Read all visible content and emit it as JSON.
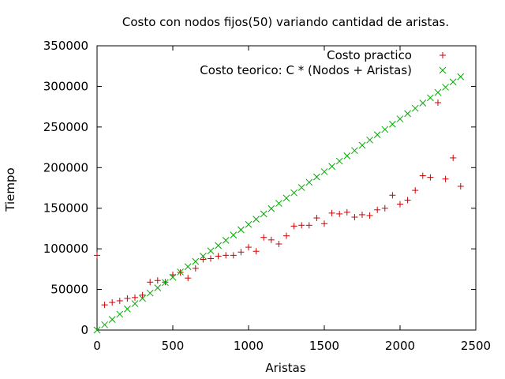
{
  "chart_data": {
    "type": "scatter",
    "title": "Costo con nodos fijos(50) variando cantidad de aristas.",
    "xlabel": "Aristas",
    "ylabel": "Tiempo",
    "xlim": [
      0,
      2500
    ],
    "ylim": [
      0,
      350000
    ],
    "x_ticks": [
      0,
      500,
      1000,
      1500,
      2000,
      2500
    ],
    "y_ticks": [
      0,
      50000,
      100000,
      150000,
      200000,
      250000,
      300000,
      350000
    ],
    "grid": false,
    "legend_position": "top-right",
    "series": [
      {
        "name": "Costo practico",
        "marker": "plus",
        "color": "#cc0000",
        "points": [
          [
            0,
            92000
          ],
          [
            50,
            31000
          ],
          [
            100,
            34000
          ],
          [
            150,
            36000
          ],
          [
            200,
            39000
          ],
          [
            250,
            40000
          ],
          [
            300,
            43000
          ],
          [
            350,
            59000
          ],
          [
            400,
            61000
          ],
          [
            450,
            59000
          ],
          [
            500,
            68000
          ],
          [
            550,
            71000
          ],
          [
            600,
            64000
          ],
          [
            650,
            76000
          ],
          [
            700,
            87000
          ],
          [
            750,
            88000
          ],
          [
            800,
            91000
          ],
          [
            850,
            92000
          ],
          [
            900,
            92000
          ],
          [
            950,
            96000
          ],
          [
            1000,
            102000
          ],
          [
            1050,
            97000
          ],
          [
            1100,
            114000
          ],
          [
            1150,
            111000
          ],
          [
            1200,
            106000
          ],
          [
            1250,
            116000
          ],
          [
            1300,
            128000
          ],
          [
            1350,
            129000
          ],
          [
            1400,
            129000
          ],
          [
            1450,
            138000
          ],
          [
            1500,
            131000
          ],
          [
            1550,
            144000
          ],
          [
            1600,
            143000
          ],
          [
            1650,
            145000
          ],
          [
            1700,
            139000
          ],
          [
            1750,
            142000
          ],
          [
            1800,
            141000
          ],
          [
            1850,
            148000
          ],
          [
            1900,
            150000
          ],
          [
            1950,
            166000
          ],
          [
            2000,
            155000
          ],
          [
            2050,
            160000
          ],
          [
            2100,
            172000
          ],
          [
            2150,
            190000
          ],
          [
            2200,
            188000
          ],
          [
            2250,
            280000
          ],
          [
            2300,
            186000
          ],
          [
            2350,
            212000
          ],
          [
            2400,
            177000
          ]
        ]
      },
      {
        "name": "Costo teorico: C * (Nodos + Aristas)",
        "marker": "cross",
        "color": "#00aa00",
        "points": [
          [
            0,
            0
          ],
          [
            50,
            6500
          ],
          [
            100,
            13000
          ],
          [
            150,
            19500
          ],
          [
            200,
            26000
          ],
          [
            250,
            32500
          ],
          [
            300,
            39000
          ],
          [
            350,
            45500
          ],
          [
            400,
            52000
          ],
          [
            450,
            58500
          ],
          [
            500,
            65000
          ],
          [
            550,
            71500
          ],
          [
            600,
            78000
          ],
          [
            650,
            84500
          ],
          [
            700,
            91000
          ],
          [
            750,
            97500
          ],
          [
            800,
            104000
          ],
          [
            850,
            110500
          ],
          [
            900,
            117000
          ],
          [
            950,
            123500
          ],
          [
            1000,
            130000
          ],
          [
            1050,
            136500
          ],
          [
            1100,
            143000
          ],
          [
            1150,
            149500
          ],
          [
            1200,
            156000
          ],
          [
            1250,
            162500
          ],
          [
            1300,
            169000
          ],
          [
            1350,
            175500
          ],
          [
            1400,
            182000
          ],
          [
            1450,
            188500
          ],
          [
            1500,
            195000
          ],
          [
            1550,
            201500
          ],
          [
            1600,
            208000
          ],
          [
            1650,
            214500
          ],
          [
            1700,
            221000
          ],
          [
            1750,
            227500
          ],
          [
            1800,
            234000
          ],
          [
            1850,
            240500
          ],
          [
            1900,
            247000
          ],
          [
            1950,
            253500
          ],
          [
            2000,
            260000
          ],
          [
            2050,
            266500
          ],
          [
            2100,
            273000
          ],
          [
            2150,
            279500
          ],
          [
            2200,
            286000
          ],
          [
            2250,
            292500
          ],
          [
            2300,
            299000
          ],
          [
            2350,
            305500
          ],
          [
            2400,
            312000
          ]
        ]
      }
    ]
  }
}
